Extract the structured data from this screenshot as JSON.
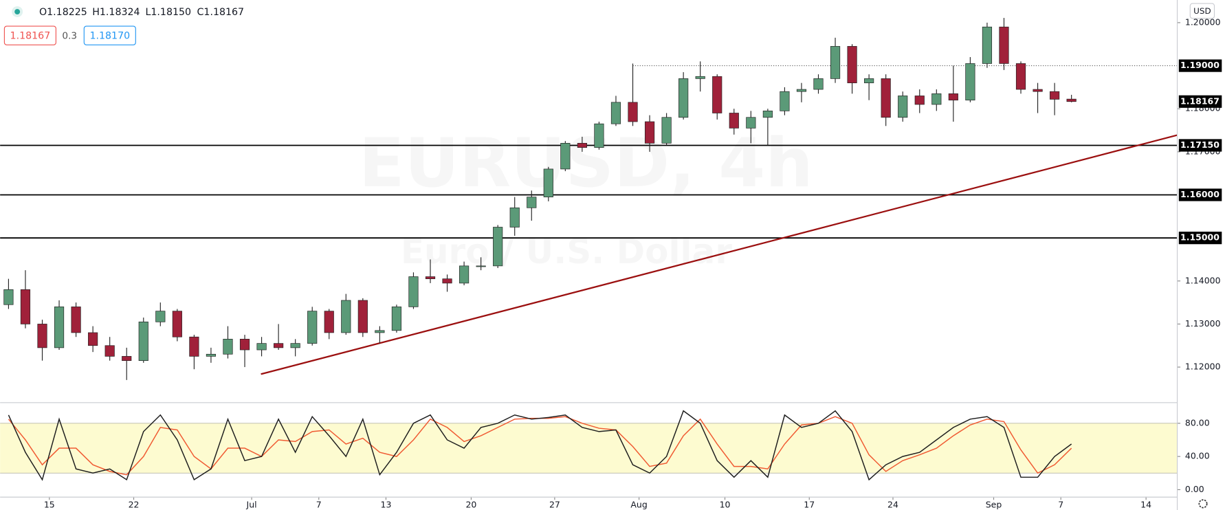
{
  "header": {
    "ohlc_labels": [
      "O",
      "H",
      "L",
      "C"
    ],
    "ohlc_value_labels": [
      "1.18225",
      "1.18324",
      "1.18150",
      "1.18167"
    ],
    "sell_price": "1.18167",
    "spread": "0.3",
    "buy_price": "1.18170",
    "currency": "USD"
  },
  "chart_data": [
    {
      "type": "candlestick",
      "watermark_symbol": "EURUSD, 4h",
      "watermark_name": "Euro / U.S. Dollar",
      "x": [
        0.5,
        1.5,
        2.5,
        3.5,
        4.5,
        5.5,
        6.5,
        7.5,
        8.5,
        9.5,
        10.5,
        11.5,
        12.5,
        13.5,
        14.5,
        15.5,
        16.5,
        17.5,
        18.5,
        19.5,
        20.5,
        21.5,
        22.5,
        23.5,
        24.5,
        25.5,
        26.5,
        27.5,
        28.5,
        29.5,
        30.5,
        31.5,
        32.5,
        33.5,
        34.5,
        35.5,
        36.5,
        37.5,
        38.5,
        39.5,
        40.5,
        41.5,
        42.5,
        43.5,
        44.5,
        45.5,
        46.5,
        47.5,
        48.5,
        49.5,
        50.5,
        51.5,
        52.5,
        53.5,
        54.5,
        55.5,
        56.5,
        57.5,
        58.5,
        59.5,
        60.5,
        61.5,
        62.5,
        63.5
      ],
      "open": [
        1.1345,
        1.138,
        1.13,
        1.1245,
        1.134,
        1.128,
        1.125,
        1.1225,
        1.1215,
        1.1305,
        1.133,
        1.127,
        1.1225,
        1.123,
        1.1265,
        1.124,
        1.1255,
        1.1245,
        1.1255,
        1.133,
        1.128,
        1.1355,
        1.128,
        1.1285,
        1.134,
        1.141,
        1.1405,
        1.1395,
        1.1435,
        1.1435,
        1.1525,
        1.157,
        1.1595,
        1.166,
        1.172,
        1.171,
        1.1765,
        1.1815,
        1.177,
        1.172,
        1.178,
        1.187,
        1.1875,
        1.179,
        1.1755,
        1.178,
        1.1795,
        1.184,
        1.1845,
        1.187,
        1.1945,
        1.186,
        1.187,
        1.178,
        1.183,
        1.181,
        1.1835,
        1.182,
        1.1905,
        1.199,
        1.1905,
        1.1845,
        1.184,
        1.18225
      ],
      "high": [
        1.1405,
        1.1425,
        1.131,
        1.1355,
        1.135,
        1.1295,
        1.127,
        1.1245,
        1.1315,
        1.135,
        1.1335,
        1.1275,
        1.1245,
        1.1295,
        1.1275,
        1.127,
        1.13,
        1.1265,
        1.134,
        1.1335,
        1.137,
        1.136,
        1.1295,
        1.1345,
        1.142,
        1.145,
        1.1415,
        1.1445,
        1.1455,
        1.153,
        1.1595,
        1.161,
        1.1665,
        1.1725,
        1.1735,
        1.177,
        1.183,
        1.1905,
        1.1785,
        1.179,
        1.1885,
        1.191,
        1.188,
        1.18,
        1.1795,
        1.18,
        1.185,
        1.186,
        1.188,
        1.1965,
        1.195,
        1.188,
        1.188,
        1.184,
        1.1845,
        1.1845,
        1.19,
        1.192,
        1.2,
        1.2011,
        1.191,
        1.186,
        1.186,
        1.18324
      ],
      "low": [
        1.1335,
        1.129,
        1.1215,
        1.124,
        1.127,
        1.1235,
        1.1215,
        1.117,
        1.121,
        1.1295,
        1.126,
        1.1195,
        1.121,
        1.122,
        1.12,
        1.1225,
        1.124,
        1.1225,
        1.125,
        1.1265,
        1.1275,
        1.127,
        1.1255,
        1.128,
        1.1335,
        1.1395,
        1.1375,
        1.139,
        1.1425,
        1.143,
        1.1505,
        1.154,
        1.1585,
        1.1655,
        1.17,
        1.1705,
        1.176,
        1.176,
        1.17,
        1.1715,
        1.1775,
        1.184,
        1.1775,
        1.174,
        1.172,
        1.1715,
        1.1785,
        1.1815,
        1.1835,
        1.186,
        1.1835,
        1.182,
        1.176,
        1.177,
        1.179,
        1.1795,
        1.177,
        1.1815,
        1.1895,
        1.189,
        1.1835,
        1.179,
        1.1785,
        1.1815
      ],
      "close": [
        1.138,
        1.13,
        1.1245,
        1.134,
        1.128,
        1.125,
        1.1225,
        1.1215,
        1.1305,
        1.133,
        1.127,
        1.1225,
        1.123,
        1.1265,
        1.124,
        1.1255,
        1.1245,
        1.1255,
        1.133,
        1.128,
        1.1355,
        1.128,
        1.1285,
        1.134,
        1.141,
        1.1405,
        1.1395,
        1.1435,
        1.1435,
        1.1525,
        1.157,
        1.1595,
        1.166,
        1.172,
        1.171,
        1.1765,
        1.1815,
        1.177,
        1.172,
        1.178,
        1.187,
        1.1875,
        1.179,
        1.1755,
        1.178,
        1.1795,
        1.184,
        1.1845,
        1.187,
        1.1945,
        1.186,
        1.187,
        1.178,
        1.183,
        1.181,
        1.1835,
        1.182,
        1.1905,
        1.199,
        1.1905,
        1.1845,
        1.184,
        1.1822,
        1.18167
      ],
      "last_label": "1.18167",
      "up_color": "#5b9a78",
      "down_color": "#a0213a",
      "xlim": [
        0,
        69.77
      ],
      "xticks": [
        {
          "value": 2.92,
          "label": "15"
        },
        {
          "value": 7.92,
          "label": "22"
        },
        {
          "value": 14.91,
          "label": "Jul"
        },
        {
          "value": 18.89,
          "label": "7"
        },
        {
          "value": 22.87,
          "label": "13"
        },
        {
          "value": 27.92,
          "label": "20"
        },
        {
          "value": 32.87,
          "label": "27"
        },
        {
          "value": 37.87,
          "label": "Aug"
        },
        {
          "value": 42.96,
          "label": "10"
        },
        {
          "value": 47.96,
          "label": "17"
        },
        {
          "value": 52.92,
          "label": "24"
        },
        {
          "value": 58.89,
          "label": "Sep"
        },
        {
          "value": 62.87,
          "label": "7"
        },
        {
          "value": 67.92,
          "label": "14"
        }
      ],
      "ylim": [
        1.11184,
        1.20526
      ],
      "yticks": [
        {
          "value": 1.12,
          "label": "1.12000"
        },
        {
          "value": 1.13,
          "label": "1.13000"
        },
        {
          "value": 1.14,
          "label": "1.14000"
        },
        {
          "value": 1.17,
          "label": "1.17000"
        },
        {
          "value": 1.18,
          "label": "1.18000"
        },
        {
          "value": 1.2,
          "label": "1.20000"
        }
      ],
      "levels": [
        {
          "value": 1.19,
          "label": "1.19000",
          "style": "dotted",
          "from_x": 37.5
        },
        {
          "value": 1.1715,
          "label": "1.17150",
          "style": "solid"
        },
        {
          "value": 1.16,
          "label": "1.16000",
          "style": "solid"
        },
        {
          "value": 1.15,
          "label": "1.15000",
          "style": "solid"
        }
      ],
      "trendline": {
        "x": [
          15.46,
          69.77
        ],
        "y": [
          1.11837,
          1.17388
        ],
        "color": "#9b0f0f"
      }
    },
    {
      "type": "line",
      "x": [
        0.5,
        1.5,
        2.5,
        3.5,
        4.5,
        5.5,
        6.5,
        7.5,
        8.5,
        9.5,
        10.5,
        11.5,
        12.5,
        13.5,
        14.5,
        15.5,
        16.5,
        17.5,
        18.5,
        19.5,
        20.5,
        21.5,
        22.5,
        23.5,
        24.5,
        25.5,
        26.5,
        27.5,
        28.5,
        29.5,
        30.5,
        31.5,
        32.5,
        33.5,
        34.5,
        35.5,
        36.5,
        37.5,
        38.5,
        39.5,
        40.5,
        41.5,
        42.5,
        43.5,
        44.5,
        45.5,
        46.5,
        47.5,
        48.5,
        49.5,
        50.5,
        51.5,
        52.5,
        53.5,
        54.5,
        55.5,
        56.5,
        57.5,
        58.5,
        59.5,
        60.5,
        61.5,
        62.5,
        63.5
      ],
      "xlim": [
        0,
        69.77
      ],
      "series": [
        {
          "color": "#f05a32",
          "values": [
            85,
            60,
            30,
            50,
            50,
            30,
            22,
            18,
            40,
            75,
            72,
            40,
            25,
            50,
            50,
            40,
            60,
            58,
            70,
            72,
            55,
            62,
            45,
            40,
            60,
            85,
            75,
            58,
            65,
            75,
            85,
            86,
            86,
            88,
            80,
            74,
            72,
            52,
            28,
            32,
            65,
            85,
            55,
            28,
            28,
            25,
            55,
            78,
            80,
            88,
            80,
            42,
            22,
            35,
            42,
            50,
            65,
            78,
            85,
            82,
            48,
            20,
            30,
            50
          ]
        },
        {
          "color": "#1e1e1e",
          "values": [
            90,
            45,
            12,
            85,
            25,
            20,
            25,
            12,
            70,
            90,
            60,
            12,
            25,
            85,
            35,
            40,
            85,
            45,
            88,
            65,
            40,
            85,
            18,
            45,
            80,
            90,
            60,
            50,
            75,
            80,
            90,
            85,
            87,
            90,
            75,
            70,
            72,
            30,
            20,
            40,
            95,
            80,
            35,
            15,
            35,
            15,
            90,
            75,
            80,
            95,
            70,
            12,
            30,
            40,
            45,
            60,
            75,
            85,
            88,
            75,
            15,
            15,
            40,
            55
          ]
        }
      ],
      "band": [
        20,
        80
      ],
      "band_color": "#fdfbd0",
      "ylim": [
        -8.5,
        103.5
      ],
      "yticks": [
        {
          "value": 0,
          "label": "0.00"
        },
        {
          "value": 40,
          "label": "40.00"
        },
        {
          "value": 80,
          "label": "80.00"
        }
      ]
    }
  ]
}
